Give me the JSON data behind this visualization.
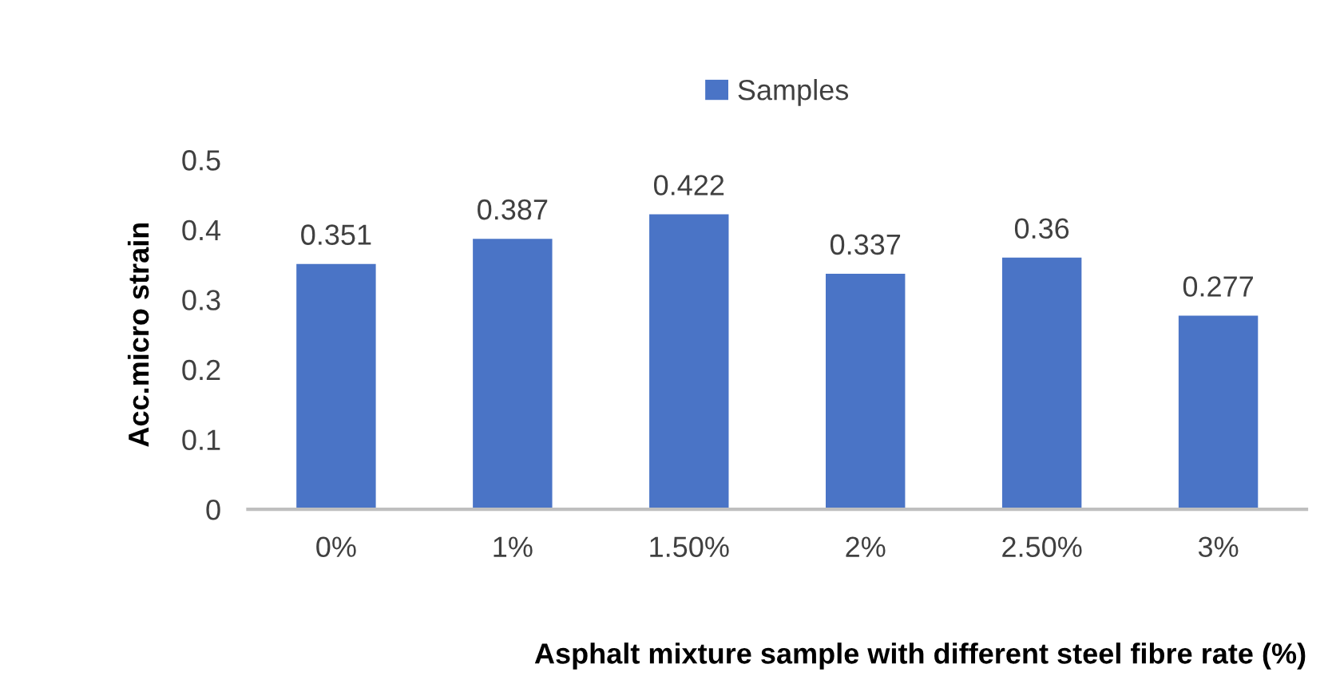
{
  "chart_data": {
    "type": "bar",
    "xlabel": "Asphalt mixture sample with different steel fibre rate (%)",
    "ylabel": "Acc.micro strain",
    "categories": [
      "0%",
      "1%",
      "1.50%",
      "2%",
      "2.50%",
      "3%"
    ],
    "series": [
      {
        "name": "Samples",
        "color": "#4a74c6",
        "values": [
          0.351,
          0.387,
          0.422,
          0.337,
          0.36,
          0.277
        ]
      }
    ],
    "ylim": [
      0,
      0.5
    ],
    "yticks": [
      0,
      0.1,
      0.2,
      0.3,
      0.4,
      0.5
    ],
    "data_labels": true,
    "legend": "top",
    "grid": false
  }
}
